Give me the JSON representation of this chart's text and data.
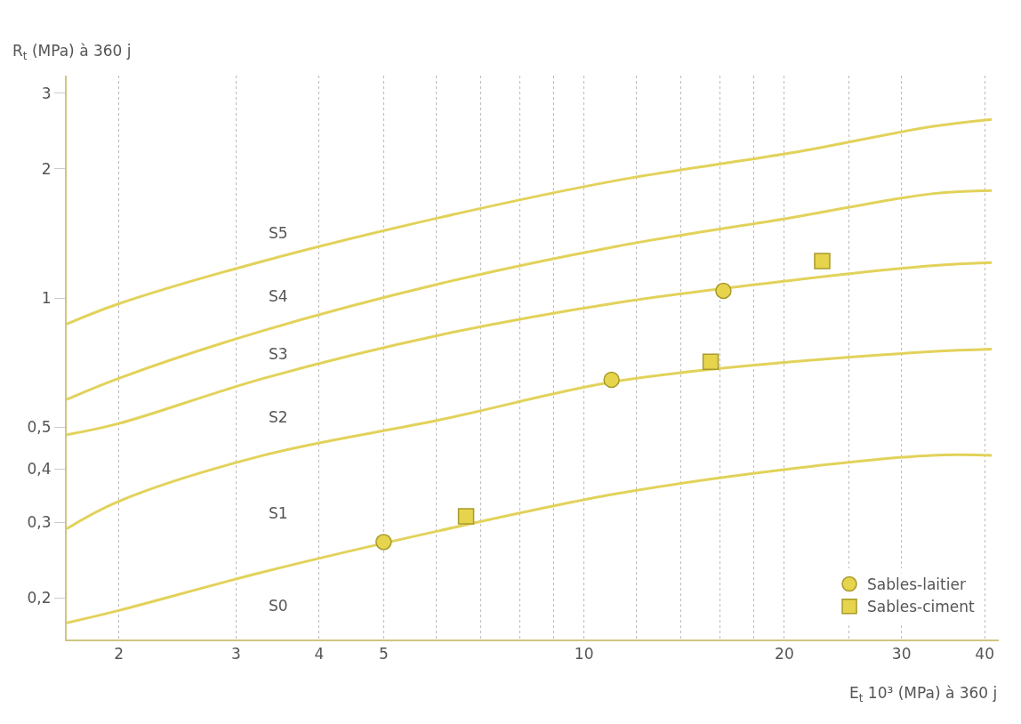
{
  "chart_data": {
    "type": "line",
    "xlabel": "E$_{t}$ 10³ (MPa) à 360 j",
    "ylabel": "R$_{t}$ (MPa) à 360 j",
    "log": "xy",
    "x": [
      1.67,
      2.0,
      3.3,
      6.07,
      11.2,
      20.5,
      33.3,
      41
    ],
    "series": [
      {
        "color": "#e2d25a",
        "values": [
          0.175,
          0.187,
          0.23,
          0.287,
          0.35,
          0.4,
          0.43,
          0.43
        ]
      },
      {
        "color": "#e2d25a",
        "values": [
          0.29,
          0.336,
          0.43,
          0.52,
          0.64,
          0.71,
          0.75,
          0.76
        ]
      },
      {
        "color": "#e2d25a",
        "values": [
          0.48,
          0.51,
          0.65,
          0.82,
          0.975,
          1.1,
          1.19,
          1.21
        ]
      },
      {
        "color": "#e2d25a",
        "values": [
          0.58,
          0.65,
          0.84,
          1.08,
          1.32,
          1.54,
          1.75,
          1.78
        ]
      },
      {
        "color": "#e2d25a",
        "values": [
          0.87,
          0.97,
          1.22,
          1.54,
          1.88,
          2.18,
          2.51,
          2.61
        ]
      },
      {
        "type": "scatter",
        "name": "Sables-laitier",
        "marker": "circle",
        "color": "#e6d44c",
        "x": [
          5.0,
          11.0,
          16.2
        ],
        "values": [
          0.27,
          0.645,
          1.04
        ]
      },
      {
        "type": "scatter",
        "name": "Sables-ciment",
        "marker": "square",
        "color": "#e6d44c",
        "x": [
          6.65,
          15.5,
          22.8
        ],
        "values": [
          0.31,
          0.71,
          1.22
        ]
      }
    ],
    "xlim": [
      1.67,
      42
    ],
    "ylim": [
      0.16,
      3.3
    ],
    "xticks": [
      2,
      3,
      4,
      5,
      {
        "value": 6,
        "label": null
      },
      {
        "value": 7,
        "label": null
      },
      {
        "value": 8,
        "label": null
      },
      {
        "value": 9,
        "label": null
      },
      10,
      {
        "value": 12,
        "label": null
      },
      {
        "value": 14,
        "label": null
      },
      {
        "value": 16,
        "label": null
      },
      {
        "value": 18,
        "label": null
      },
      20,
      {
        "value": 25,
        "label": null
      },
      30,
      40
    ],
    "yticks": [
      {
        "value": 0.2,
        "label": "0,2"
      },
      {
        "value": 0.3,
        "label": "0,3"
      },
      {
        "value": 0.4,
        "label": "0,4"
      },
      {
        "value": 0.5,
        "label": "0,5"
      },
      1,
      2,
      3
    ],
    "grid": "x",
    "legend": "bottom right",
    "annotations": [
      "S5",
      "S4",
      "S3",
      "S2",
      "S1",
      "S0"
    ]
  }
}
